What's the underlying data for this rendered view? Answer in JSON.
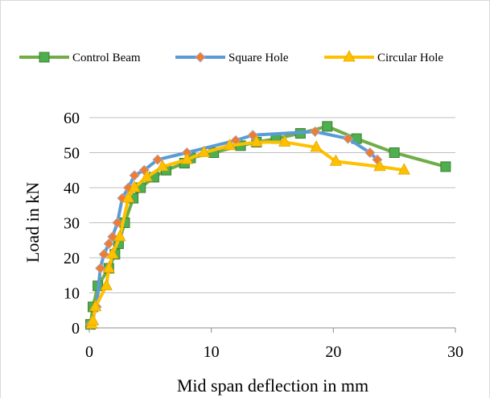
{
  "chart_data": {
    "type": "line",
    "xlabel": "Mid span deflection in mm",
    "ylabel": "Load in kN",
    "xlim": [
      0,
      30
    ],
    "ylim": [
      0,
      60
    ],
    "x_ticks": [
      "0",
      "10",
      "20",
      "30"
    ],
    "y_ticks": [
      "0",
      "10",
      "20",
      "30",
      "40",
      "50",
      "60"
    ],
    "grid": "horizontal",
    "legend_position": "top",
    "series": [
      {
        "name": "Control Beam",
        "color": "#70AD47",
        "marker_color": "#4CAF50",
        "marker": "square",
        "x": [
          0.1,
          0.3,
          0.7,
          1.6,
          2.1,
          2.4,
          2.9,
          3.6,
          4.2,
          5.3,
          6.3,
          7.8,
          8.3,
          10.2,
          12.4,
          13.7,
          15.3,
          17.3,
          19.5,
          21.9,
          25.0,
          29.2
        ],
        "y": [
          1,
          6,
          12,
          17,
          21,
          24,
          30,
          37,
          40,
          43,
          45,
          47,
          48.5,
          50,
          52,
          53,
          54,
          55.5,
          57.5,
          54,
          50,
          46
        ]
      },
      {
        "name": "Square Hole",
        "color": "#5B9BD5",
        "marker_color": "#ED7D31",
        "marker": "diamond",
        "x": [
          0.1,
          0.6,
          0.9,
          1.2,
          1.6,
          1.9,
          2.3,
          2.7,
          3.2,
          3.7,
          4.5,
          5.6,
          8.0,
          12.0,
          13.4,
          18.5,
          21.2,
          23.0,
          23.6
        ],
        "y": [
          1,
          6,
          17,
          21,
          24,
          26,
          30,
          37,
          40,
          43.5,
          45,
          48,
          50,
          53.5,
          55,
          56,
          54,
          50,
          48
        ]
      },
      {
        "name": "Circular Hole",
        "color": "#FFC000",
        "marker_color": "#FFC000",
        "marker": "triangle",
        "x": [
          0.2,
          0.3,
          0.5,
          1.4,
          1.6,
          1.9,
          2.5,
          3.2,
          3.7,
          4.7,
          6.0,
          8.0,
          9.4,
          11.5,
          13.7,
          16.0,
          18.6,
          20.2,
          23.8,
          25.8
        ],
        "y": [
          1,
          2,
          6,
          12,
          17,
          21,
          26,
          37,
          40,
          43,
          46,
          48,
          50,
          52,
          53,
          53,
          51.5,
          47.5,
          46,
          45
        ]
      }
    ]
  }
}
